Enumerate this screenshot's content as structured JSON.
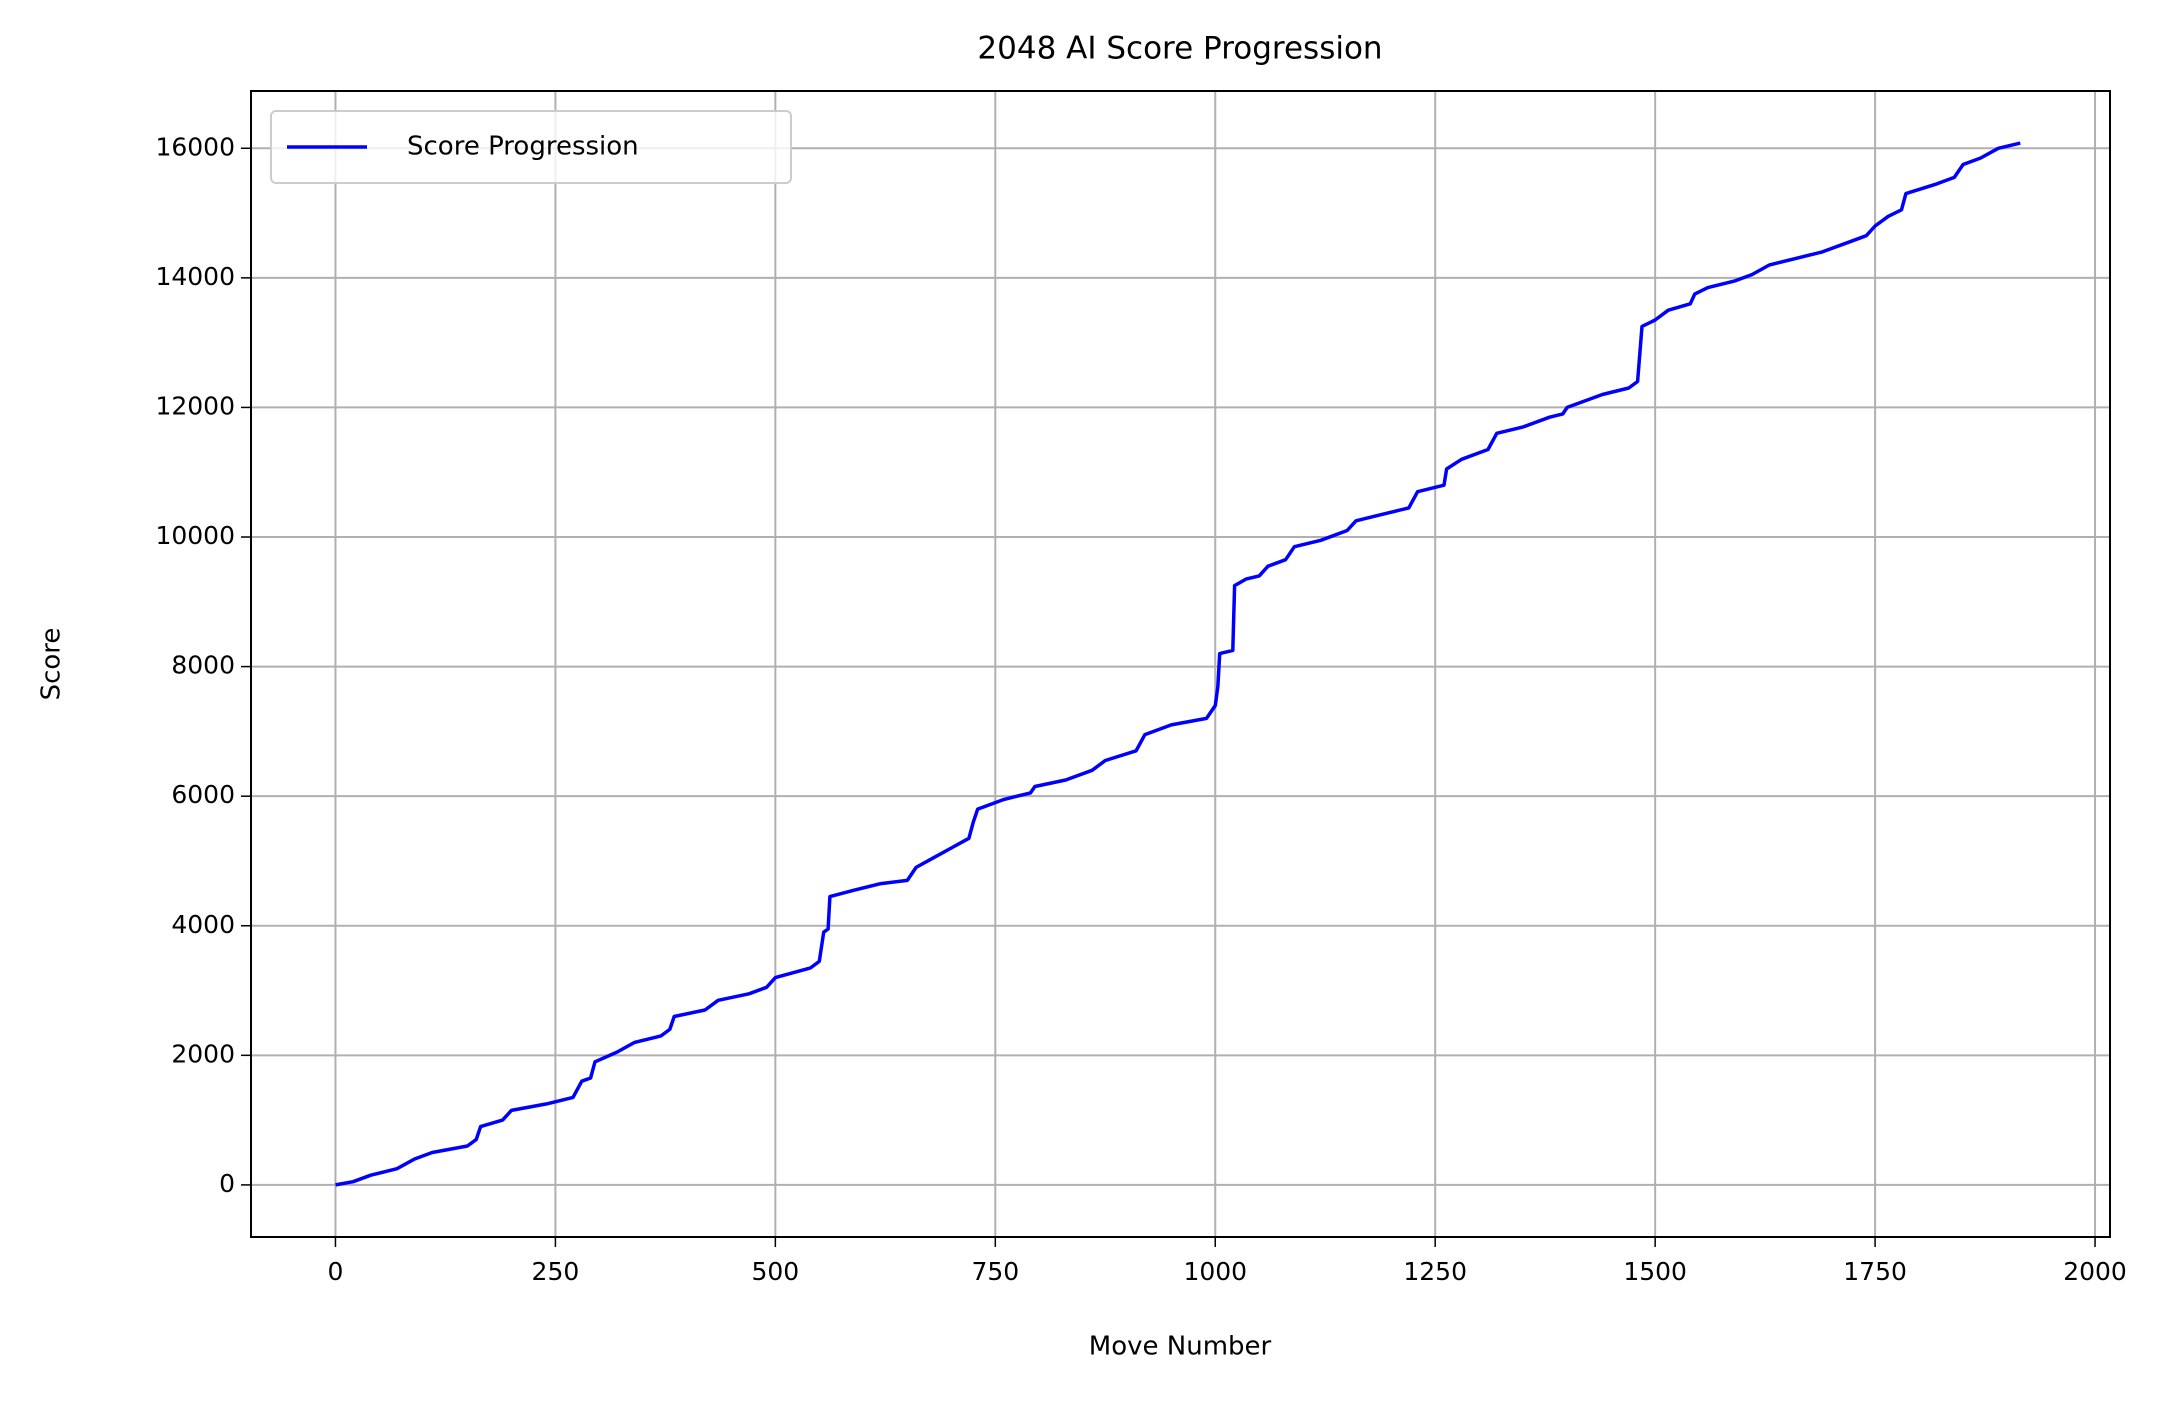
{
  "chart_data": {
    "type": "line",
    "title": "2048 AI Score Progression",
    "x_label": "Move Number",
    "y_label": "Score",
    "x": [
      0,
      20,
      40,
      70,
      90,
      110,
      150,
      160,
      165,
      190,
      200,
      240,
      270,
      280,
      290,
      295,
      320,
      340,
      370,
      380,
      385,
      420,
      435,
      470,
      490,
      500,
      540,
      550,
      555,
      560,
      562,
      590,
      620,
      650,
      660,
      680,
      700,
      720,
      725,
      730,
      760,
      790,
      795,
      830,
      860,
      875,
      910,
      920,
      950,
      990,
      1000,
      1003,
      1005,
      1020,
      1022,
      1035,
      1050,
      1060,
      1080,
      1090,
      1120,
      1150,
      1160,
      1190,
      1220,
      1230,
      1260,
      1263,
      1280,
      1310,
      1320,
      1350,
      1380,
      1395,
      1400,
      1440,
      1470,
      1480,
      1485,
      1500,
      1515,
      1540,
      1545,
      1560,
      1590,
      1610,
      1630,
      1660,
      1690,
      1720,
      1740,
      1750,
      1765,
      1780,
      1785,
      1820,
      1840,
      1850,
      1870,
      1890,
      1915
    ],
    "series": [
      {
        "name": "Score Progression",
        "color": "#0000ff",
        "values": [
          0,
          50,
          150,
          250,
          400,
          500,
          600,
          700,
          900,
          1000,
          1150,
          1250,
          1350,
          1600,
          1650,
          1900,
          2050,
          2200,
          2300,
          2400,
          2600,
          2700,
          2850,
          2950,
          3050,
          3200,
          3350,
          3450,
          3900,
          3950,
          4450,
          4550,
          4650,
          4700,
          4900,
          5050,
          5200,
          5350,
          5600,
          5800,
          5950,
          6050,
          6150,
          6250,
          6400,
          6550,
          6700,
          6950,
          7100,
          7200,
          7400,
          7700,
          8200,
          8250,
          9250,
          9350,
          9400,
          9550,
          9650,
          9850,
          9950,
          10100,
          10250,
          10350,
          10450,
          10700,
          10800,
          11050,
          11200,
          11350,
          11600,
          11700,
          11850,
          11900,
          12000,
          12200,
          12300,
          12400,
          13250,
          13350,
          13500,
          13600,
          13750,
          13850,
          13950,
          14050,
          14200,
          14300,
          14400,
          14550,
          14650,
          14800,
          14950,
          15050,
          15300,
          15450,
          15550,
          15750,
          15850,
          16000,
          16080
        ]
      }
    ],
    "xlim": [
      -96,
      2017
    ],
    "ylim": [
      -804,
      16884
    ],
    "xticks": [
      0,
      250,
      500,
      750,
      1000,
      1250,
      1500,
      1750,
      2000
    ],
    "yticks": [
      0,
      2000,
      4000,
      6000,
      8000,
      10000,
      12000,
      14000,
      16000
    ],
    "grid": true,
    "legend": "upper left"
  }
}
